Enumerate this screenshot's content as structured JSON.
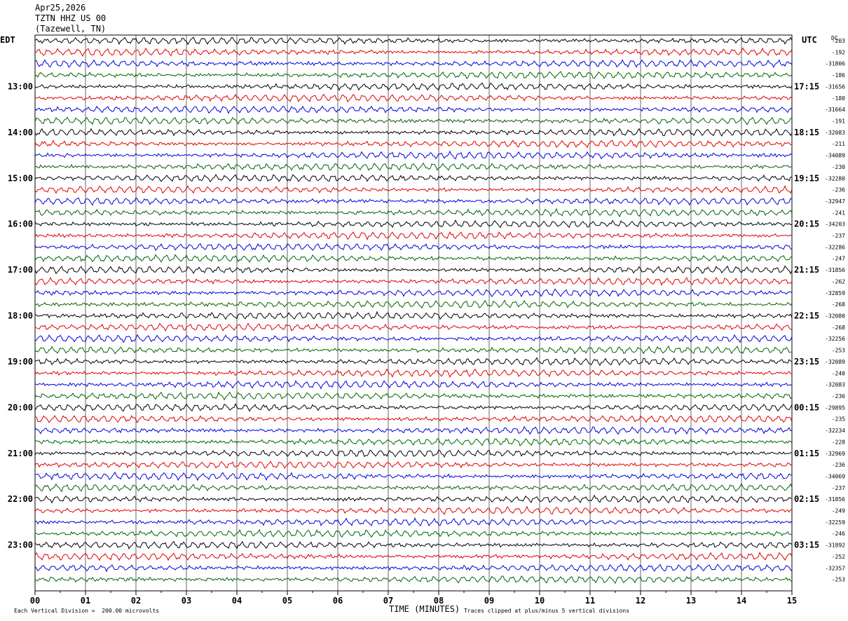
{
  "header": {
    "date": "Apr25,2026",
    "station": "TZTN HHZ US 00",
    "location": "(Tazewell, TN)"
  },
  "left_tz": "EDT",
  "right_tz": "UTC",
  "dc_header": "DC",
  "footer": {
    "scale": "Each Vertical Division =  200.00 microvolts",
    "xlabel": "TIME (MINUTES)",
    "clip_note": "Traces clipped at plus/minus 5 vertical divisions"
  },
  "chart_data": {
    "type": "line",
    "title": "",
    "xlabel": "TIME (MINUTES)",
    "ylabel": "",
    "xlim": [
      0,
      15
    ],
    "x_ticks": [
      "00",
      "01",
      "02",
      "03",
      "04",
      "05",
      "06",
      "07",
      "08",
      "09",
      "10",
      "11",
      "12",
      "13",
      "14",
      "15"
    ],
    "hour_labels_left": [
      "13:00",
      "14:00",
      "15:00",
      "16:00",
      "17:00",
      "18:00",
      "19:00",
      "20:00",
      "21:00",
      "22:00",
      "23:00"
    ],
    "hour_labels_right": [
      "17:15",
      "18:15",
      "19:15",
      "20:15",
      "21:15",
      "22:15",
      "23:15",
      "00:15",
      "01:15",
      "02:15",
      "03:15"
    ],
    "trace_colors": [
      "#000000",
      "#e00000",
      "#0000e0",
      "#006400"
    ],
    "grid": "vertical lines every minute",
    "dc_offsets": [
      "-203",
      "-192",
      "-31806",
      "-186",
      "-31656",
      "-180",
      "-31664",
      "-191",
      "-32083",
      "-211",
      "-34089",
      "-230",
      "-32280",
      "-236",
      "-32947",
      "-241",
      "-34203",
      "-237",
      "-32286",
      "-247",
      "-31856",
      "-262",
      "-32859",
      "-268",
      "-32080",
      "-268",
      "-32256",
      "-253",
      "-32089",
      "-240",
      "-32083",
      "-236",
      "-29895",
      "-235",
      "-32234",
      "-228",
      "-32969",
      "-236",
      "-34069",
      "-237",
      "-31856",
      "-249",
      "-32259",
      "-246",
      "-31892",
      "-252",
      "-32357",
      "-253"
    ]
  }
}
